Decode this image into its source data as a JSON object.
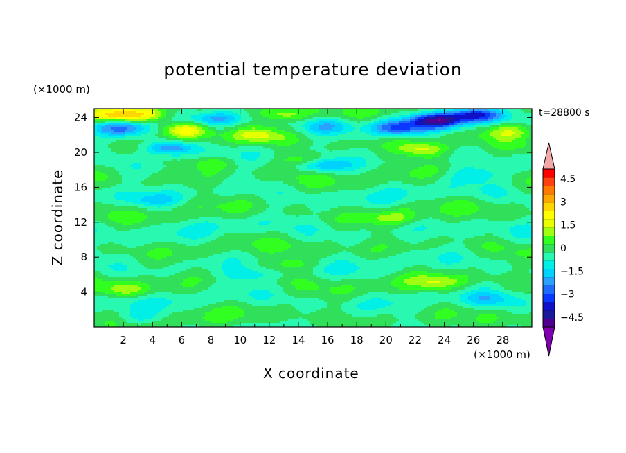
{
  "chart_data": {
    "type": "heatmap",
    "title": "potential temperature deviation",
    "xlabel": "X coordinate",
    "ylabel": "Z coordinate",
    "x_unit": "(×1000 m)",
    "y_unit": "(×1000 m)",
    "time_label": "t=28800 s",
    "xlim": [
      0,
      30
    ],
    "ylim": [
      0,
      25
    ],
    "xticks": [
      2,
      4,
      6,
      8,
      10,
      12,
      14,
      16,
      18,
      20,
      22,
      24,
      26,
      28
    ],
    "yticks": [
      4,
      8,
      12,
      16,
      20,
      24
    ],
    "colorbar": {
      "ticks": [
        "4.5",
        "3",
        "1.5",
        "0",
        "−1.5",
        "−3",
        "−4.5"
      ],
      "levels": [
        -4.5,
        -4,
        -3.5,
        -3,
        -2.5,
        -2,
        -1.5,
        -1,
        -0.5,
        0,
        0.5,
        1,
        1.5,
        2,
        2.5,
        3,
        3.5,
        4,
        4.5
      ],
      "colors": [
        "#500090",
        "#1a1a9a",
        "#1010c8",
        "#0a38ff",
        "#1e6cff",
        "#2aa0ff",
        "#00d2ff",
        "#00f0e8",
        "#28f8b0",
        "#30e05a",
        "#30ff20",
        "#a0ff10",
        "#e8ff00",
        "#ffff00",
        "#ffd700",
        "#ffa600",
        "#ff7a00",
        "#ff4010",
        "#ff0000"
      ],
      "under_color": "#8000b0",
      "over_color": "#f0a8a8"
    },
    "features": [
      {
        "x": 23.5,
        "z": 23.6,
        "value": -3.6
      },
      {
        "x": 26.2,
        "z": 24.3,
        "value": -3.2
      },
      {
        "x": 20.8,
        "z": 22.8,
        "value": -2.4
      },
      {
        "x": 5.3,
        "z": 20.5,
        "value": -2.6
      },
      {
        "x": 2.0,
        "z": 22.8,
        "value": -1.9
      },
      {
        "x": 15.6,
        "z": 18.6,
        "value": -1.8
      },
      {
        "x": 6.3,
        "z": 22.6,
        "value": 2.6
      },
      {
        "x": 1.0,
        "z": 24.2,
        "value": 2.2
      },
      {
        "x": 3.2,
        "z": 24.3,
        "value": 1.7
      },
      {
        "x": 13.0,
        "z": 24.3,
        "value": 1.5
      },
      {
        "x": 22.6,
        "z": 20.3,
        "value": 1.8
      },
      {
        "x": 14.5,
        "z": 19.1,
        "value": 1.6
      },
      {
        "x": 28.5,
        "z": 22.5,
        "value": 1.5
      },
      {
        "x": 11.2,
        "z": 22.0,
        "value": 1.2
      },
      {
        "x": 8.0,
        "z": 18.8,
        "value": 1.1
      },
      {
        "x": 23.6,
        "z": 5.0,
        "value": 1.2
      },
      {
        "x": 2.2,
        "z": 4.3,
        "value": 1.1
      },
      {
        "x": 13.5,
        "z": 7.2,
        "value": 1.0
      },
      {
        "x": 20.5,
        "z": 12.5,
        "value": 1.0
      },
      {
        "x": 16.0,
        "z": 23.0,
        "value": -1.2
      },
      {
        "x": 8.5,
        "z": 23.8,
        "value": -1.1
      },
      {
        "x": 4.0,
        "z": 14.5,
        "value": -0.9
      },
      {
        "x": 26.0,
        "z": 17.5,
        "value": -1.0
      },
      {
        "x": 10.5,
        "z": 6.0,
        "value": -0.9
      },
      {
        "x": 3.0,
        "z": 1.0,
        "value": -0.8
      },
      {
        "x": 27.0,
        "z": 3.2,
        "value": -0.8
      }
    ]
  }
}
